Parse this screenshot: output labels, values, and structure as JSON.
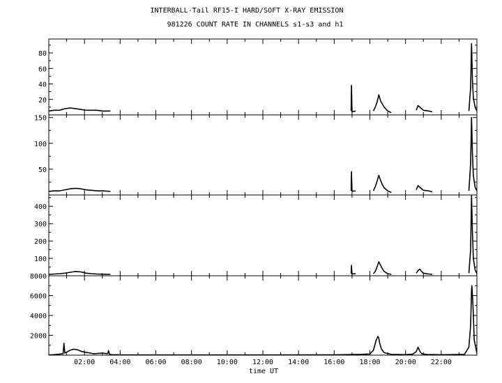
{
  "chart_data": {
    "type": "line",
    "title": "INTERBALL-Tail RF15-I HARD/SOFT X-RAY EMISSION",
    "subtitle": "981226  COUNT RATE IN CHANNELS s1-s3 and h1",
    "xlabel": "time UT",
    "x_unit": "hours UT",
    "xlim": [
      0,
      24
    ],
    "x_ticks": [
      2,
      4,
      6,
      8,
      10,
      12,
      14,
      16,
      18,
      20,
      22
    ],
    "x_tick_labels": [
      "02:00",
      "04:00",
      "06:00",
      "08:00",
      "10:00",
      "12:00",
      "14:00",
      "16:00",
      "18:00",
      "20:00",
      "22:00"
    ],
    "grid": false,
    "panels": [
      {
        "channel": "s1",
        "ylim": [
          0,
          98
        ],
        "y_ticks": [
          20,
          40,
          60,
          80
        ],
        "x": [
          0.0,
          0.3,
          0.6,
          0.9,
          1.2,
          1.5,
          1.8,
          2.1,
          2.4,
          2.7,
          3.0,
          3.45,
          3.47,
          13.7,
          13.72,
          16.3,
          16.32,
          16.55,
          16.57,
          16.95,
          16.97,
          17.0,
          17.2,
          17.22,
          18.2,
          18.3,
          18.4,
          18.5,
          18.6,
          18.7,
          18.8,
          19.0,
          19.2,
          19.22,
          19.6,
          19.62,
          20.6,
          20.7,
          20.8,
          20.9,
          21.0,
          21.3,
          21.5,
          21.52,
          22.35,
          22.37,
          23.55,
          23.65,
          23.7,
          23.75,
          23.8,
          23.9,
          24.0
        ],
        "y": [
          5,
          6,
          6,
          8,
          9,
          8,
          7,
          6,
          6,
          6,
          5,
          5,
          null,
          3,
          null,
          4,
          null,
          5,
          null,
          5,
          38,
          4,
          5,
          null,
          5,
          10,
          16,
          26,
          18,
          14,
          10,
          5,
          3,
          null,
          3,
          null,
          6,
          12,
          10,
          8,
          6,
          5,
          4,
          null,
          3,
          null,
          5,
          35,
          92,
          45,
          22,
          10,
          5
        ]
      },
      {
        "channel": "s2",
        "ylim": [
          0,
          155
        ],
        "y_ticks": [
          50,
          100,
          150
        ],
        "x": [
          0.0,
          0.3,
          0.6,
          0.9,
          1.2,
          1.5,
          1.8,
          2.1,
          2.4,
          2.7,
          3.0,
          3.45,
          3.47,
          13.7,
          13.72,
          16.3,
          16.32,
          16.55,
          16.57,
          16.95,
          16.97,
          17.0,
          17.2,
          17.22,
          18.2,
          18.3,
          18.4,
          18.5,
          18.6,
          18.7,
          18.8,
          19.0,
          19.2,
          19.22,
          19.6,
          19.62,
          20.6,
          20.7,
          20.8,
          20.9,
          21.0,
          21.3,
          21.5,
          21.52,
          22.35,
          22.37,
          23.55,
          23.65,
          23.7,
          23.75,
          23.8,
          23.9,
          24.0
        ],
        "y": [
          7,
          8,
          8,
          10,
          12,
          13,
          12,
          10,
          9,
          8,
          8,
          7,
          null,
          5,
          null,
          6,
          null,
          7,
          null,
          8,
          45,
          7,
          8,
          null,
          8,
          16,
          26,
          38,
          28,
          20,
          14,
          8,
          5,
          null,
          5,
          null,
          10,
          18,
          15,
          12,
          9,
          8,
          6,
          null,
          5,
          null,
          8,
          60,
          150,
          80,
          38,
          15,
          8
        ]
      },
      {
        "channel": "s3",
        "ylim": [
          0,
          465
        ],
        "y_ticks": [
          100,
          200,
          300,
          400
        ],
        "x": [
          0.0,
          0.3,
          0.6,
          0.9,
          1.2,
          1.5,
          1.8,
          2.1,
          2.4,
          2.7,
          3.0,
          3.45,
          3.47,
          13.7,
          13.72,
          16.3,
          16.32,
          16.55,
          16.57,
          16.95,
          16.97,
          17.0,
          17.2,
          17.22,
          18.2,
          18.3,
          18.4,
          18.5,
          18.6,
          18.7,
          18.8,
          19.0,
          19.2,
          19.22,
          19.6,
          19.62,
          20.6,
          20.7,
          20.8,
          20.9,
          21.0,
          21.3,
          21.5,
          21.52,
          22.35,
          22.37,
          23.55,
          23.65,
          23.7,
          23.75,
          23.8,
          23.9,
          24.0
        ],
        "y": [
          8,
          10,
          12,
          15,
          20,
          25,
          22,
          15,
          12,
          10,
          9,
          8,
          null,
          6,
          null,
          8,
          null,
          10,
          null,
          12,
          60,
          10,
          12,
          null,
          12,
          25,
          50,
          80,
          60,
          40,
          25,
          12,
          8,
          null,
          8,
          null,
          15,
          30,
          38,
          25,
          15,
          10,
          8,
          null,
          6,
          null,
          15,
          150,
          460,
          250,
          100,
          35,
          12
        ]
      },
      {
        "channel": "h1",
        "ylim": [
          0,
          8000
        ],
        "y_ticks": [
          2000,
          4000,
          6000,
          8000
        ],
        "x": [
          0.0,
          0.3,
          0.6,
          0.8,
          0.85,
          0.9,
          1.0,
          1.2,
          1.4,
          1.6,
          1.8,
          2.0,
          2.2,
          2.5,
          3.0,
          3.3,
          3.35,
          3.4,
          3.5,
          4.0,
          8.0,
          12.0,
          16.0,
          17.5,
          18.0,
          18.2,
          18.35,
          18.45,
          18.5,
          18.55,
          18.65,
          18.8,
          19.2,
          20.0,
          20.4,
          20.6,
          20.7,
          20.8,
          20.9,
          21.2,
          22.0,
          23.3,
          23.55,
          23.65,
          23.7,
          23.72,
          23.78,
          23.85,
          24.0
        ],
        "y": [
          20,
          50,
          100,
          150,
          1200,
          200,
          300,
          500,
          600,
          550,
          400,
          300,
          250,
          150,
          200,
          150,
          450,
          100,
          50,
          30,
          20,
          20,
          30,
          80,
          120,
          500,
          1500,
          1900,
          1700,
          1200,
          600,
          250,
          80,
          50,
          100,
          350,
          800,
          400,
          150,
          60,
          40,
          80,
          800,
          3000,
          6500,
          7000,
          5000,
          1500,
          200
        ]
      }
    ]
  }
}
